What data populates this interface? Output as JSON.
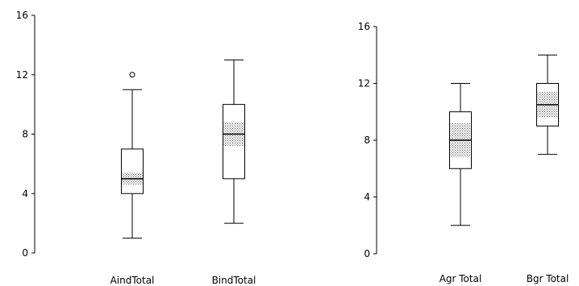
{
  "chart_data": [
    {
      "type": "boxplot",
      "ylim": [
        0,
        16
      ],
      "yticks": [
        0,
        4,
        8,
        12,
        16
      ],
      "ytick_labels": [
        "0",
        "4",
        "8",
        "12",
        "16"
      ],
      "categories": [
        "AindTotal",
        "BindTotal"
      ],
      "boxes": [
        {
          "name": "AindTotal",
          "min": 1,
          "q1": 4,
          "median": 5,
          "q3": 7,
          "max": 11,
          "notch_low": 4.6,
          "notch_high": 5.4,
          "outliers": [
            12
          ]
        },
        {
          "name": "BindTotal",
          "min": 2,
          "q1": 5,
          "median": 8,
          "q3": 10,
          "max": 13,
          "notch_low": 7.2,
          "notch_high": 8.8,
          "outliers": []
        }
      ]
    },
    {
      "type": "boxplot",
      "ylim": [
        0,
        16
      ],
      "yticks": [
        0,
        4,
        8,
        12,
        16
      ],
      "ytick_labels": [
        "0",
        "4",
        "8",
        "12",
        "16"
      ],
      "categories": [
        "Agr Total",
        "Bgr Total"
      ],
      "boxes": [
        {
          "name": "Agr Total",
          "min": 2,
          "q1": 6,
          "median": 8,
          "q3": 10,
          "max": 12,
          "notch_low": 6.8,
          "notch_high": 9.2,
          "outliers": []
        },
        {
          "name": "Bgr Total",
          "min": 7,
          "q1": 9,
          "median": 10.5,
          "q3": 12,
          "max": 14,
          "notch_low": 9.6,
          "notch_high": 11.4,
          "outliers": []
        }
      ]
    }
  ]
}
